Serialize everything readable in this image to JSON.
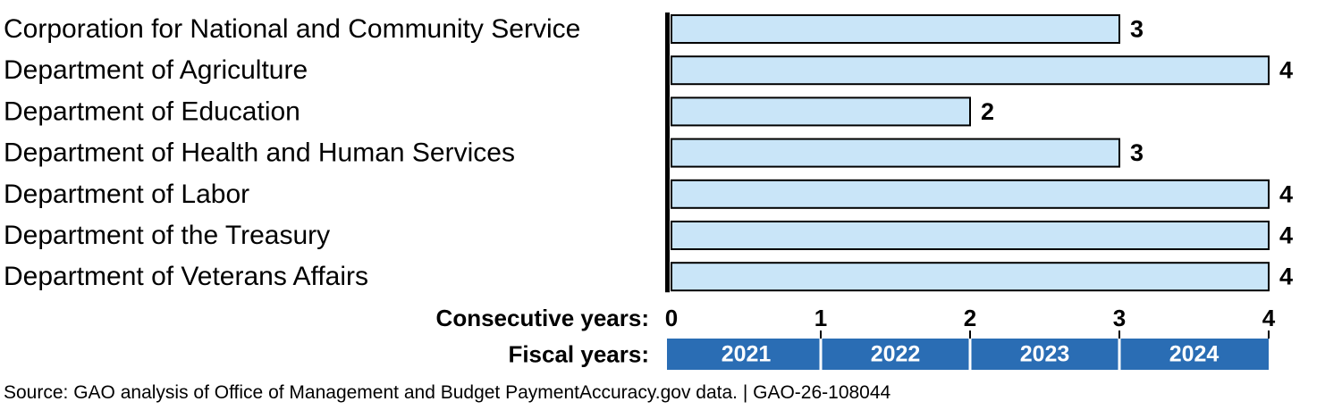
{
  "chart_data": {
    "type": "bar",
    "orientation": "horizontal",
    "categories": [
      "Corporation for National and Community Service",
      "Department of Agriculture",
      "Department of Education",
      "Department of Health and Human Services",
      "Department of Labor",
      "Department of the Treasury",
      "Department of Veterans Affairs"
    ],
    "values": [
      3,
      4,
      2,
      3,
      4,
      4,
      4
    ],
    "xlim": [
      0,
      4
    ],
    "x_ticks": [
      0,
      1,
      2,
      3,
      4
    ],
    "x_axis_label": "Consecutive years:",
    "fiscal_years_label": "Fiscal years:",
    "fiscal_years": [
      "2021",
      "2022",
      "2023",
      "2024"
    ],
    "grid": false,
    "colors": {
      "bar_fill": "#c9e5f8",
      "bar_stroke": "#000000",
      "fiscal_year_band": "#2a6db4",
      "axis": "#000000"
    }
  },
  "footer": {
    "source": "Source: GAO analysis of Office of Management and Budget PaymentAccuracy.gov data.  |  GAO-26-108044"
  }
}
